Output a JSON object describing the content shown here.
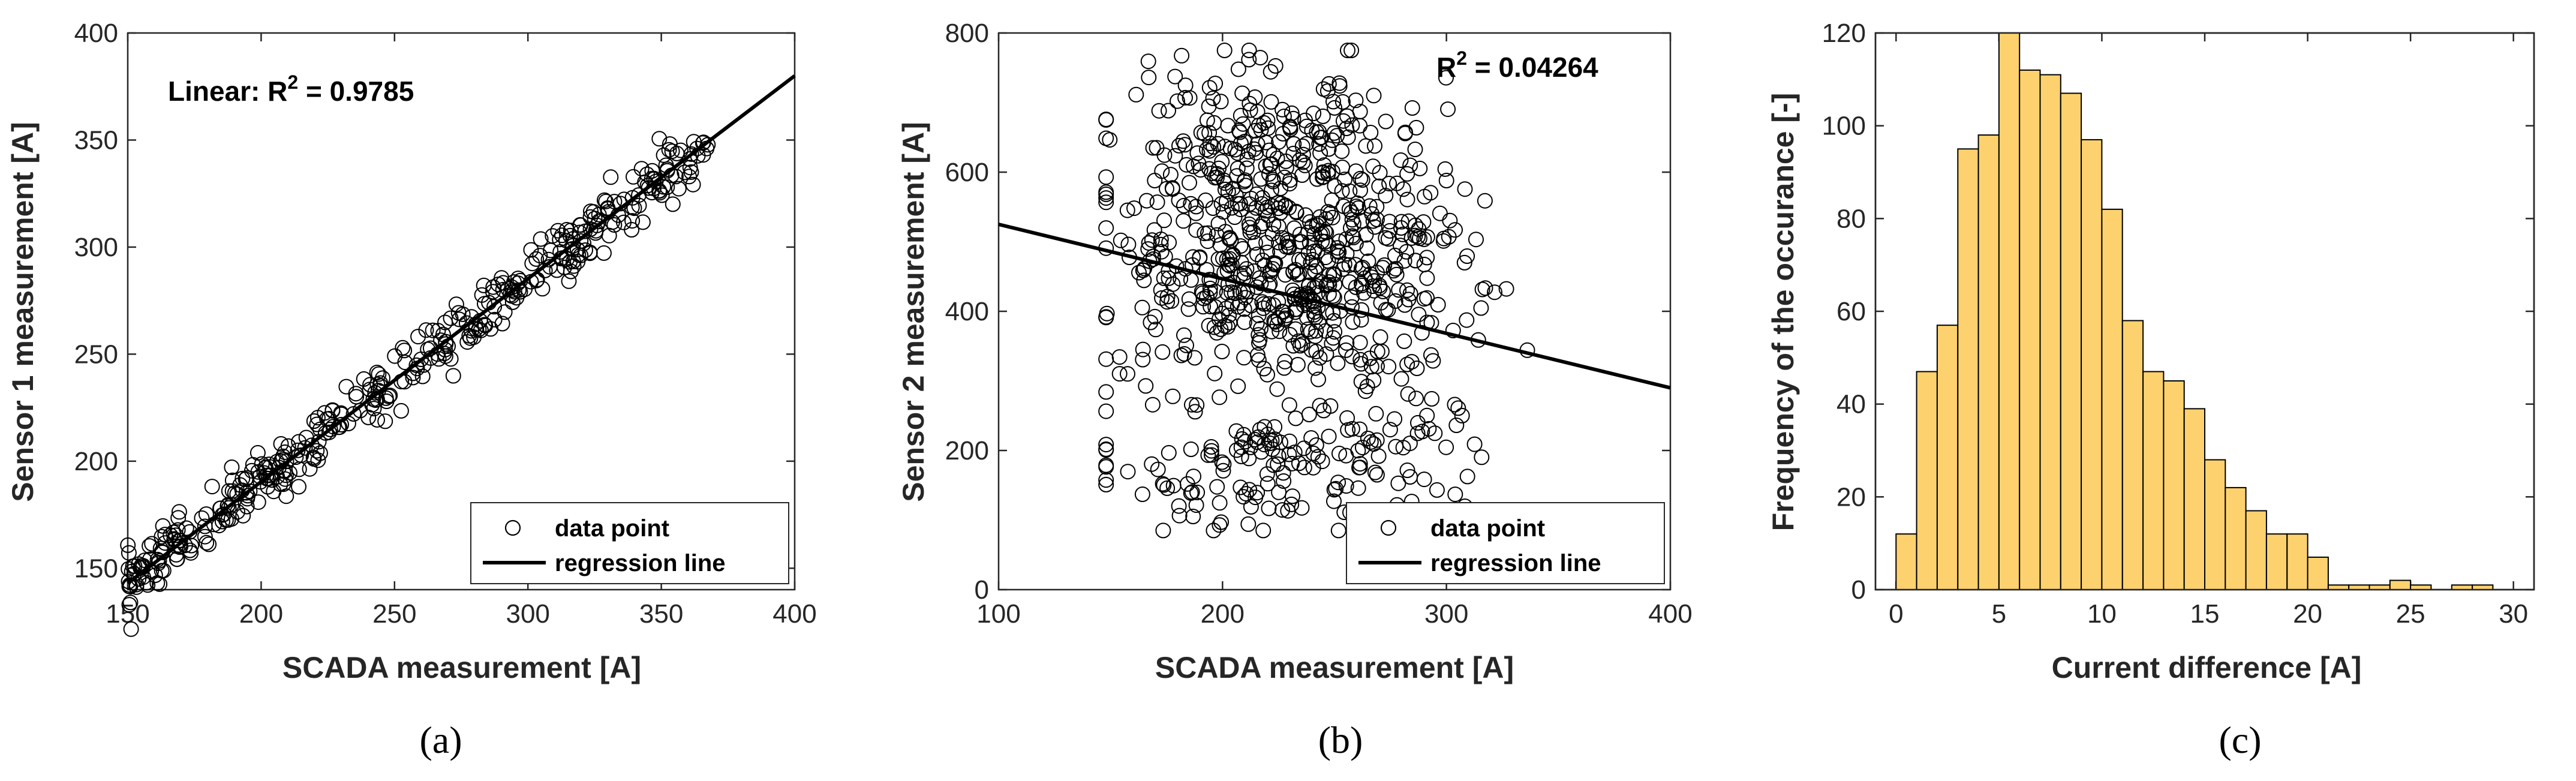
{
  "chart_data": [
    {
      "id": "a",
      "type": "scatter",
      "caption": "(a)",
      "xlabel": "SCADA measurement [A]",
      "ylabel": "Sensor 1 measurement [A]",
      "xlim": [
        150,
        400
      ],
      "ylim": [
        140,
        400
      ],
      "xticks": [
        "150",
        "200",
        "250",
        "300",
        "350",
        "400"
      ],
      "yticks": [
        "150",
        "200",
        "250",
        "300",
        "350",
        "400"
      ],
      "annotation_prefix": "Linear: R",
      "annotation_sup": "2",
      "annotation_value": " = 0.9785",
      "regression": {
        "x": [
          150,
          400
        ],
        "y": [
          143,
          380
        ]
      },
      "legend": [
        "data point",
        "regression line"
      ],
      "scatter_model": {
        "n": 420,
        "x_range": [
          150,
          368
        ],
        "slope": 0.948,
        "intercept": 0.8,
        "noise": 6.5
      }
    },
    {
      "id": "b",
      "type": "scatter",
      "caption": "(b)",
      "xlabel": "SCADA measurement [A]",
      "ylabel": "Sensor 2 measurement [A]",
      "xlim": [
        100,
        400
      ],
      "ylim": [
        0,
        800
      ],
      "xticks": [
        "100",
        "200",
        "300",
        "400"
      ],
      "yticks": [
        "0",
        "200",
        "400",
        "600",
        "800"
      ],
      "annotation_prefix": "R",
      "annotation_sup": "2",
      "annotation_value": " = 0.04264",
      "regression": {
        "x": [
          100,
          400
        ],
        "y": [
          525,
          290
        ]
      },
      "legend": [
        "data point",
        "regression line"
      ],
      "scatter_model": {
        "n": 900,
        "x_range": [
          148,
          358
        ],
        "y_range": [
          85,
          775
        ]
      }
    },
    {
      "id": "c",
      "type": "bar",
      "caption": "(c)",
      "xlabel": "Current difference [A]",
      "ylabel": "Frequency of the occurance [-]",
      "xlim": [
        -1,
        31
      ],
      "ylim": [
        0,
        120
      ],
      "xticks": [
        "0",
        "5",
        "10",
        "15",
        "20",
        "25",
        "30"
      ],
      "yticks": [
        "0",
        "20",
        "40",
        "60",
        "80",
        "100",
        "120"
      ],
      "bin_width": 1,
      "bin_start": 0,
      "values": [
        12,
        47,
        57,
        95,
        98,
        120,
        112,
        111,
        107,
        97,
        82,
        58,
        47,
        45,
        39,
        28,
        22,
        17,
        12,
        12,
        7,
        1,
        1,
        1,
        2,
        1,
        0,
        1,
        1
      ],
      "bar_color": "#FDD26E"
    }
  ]
}
